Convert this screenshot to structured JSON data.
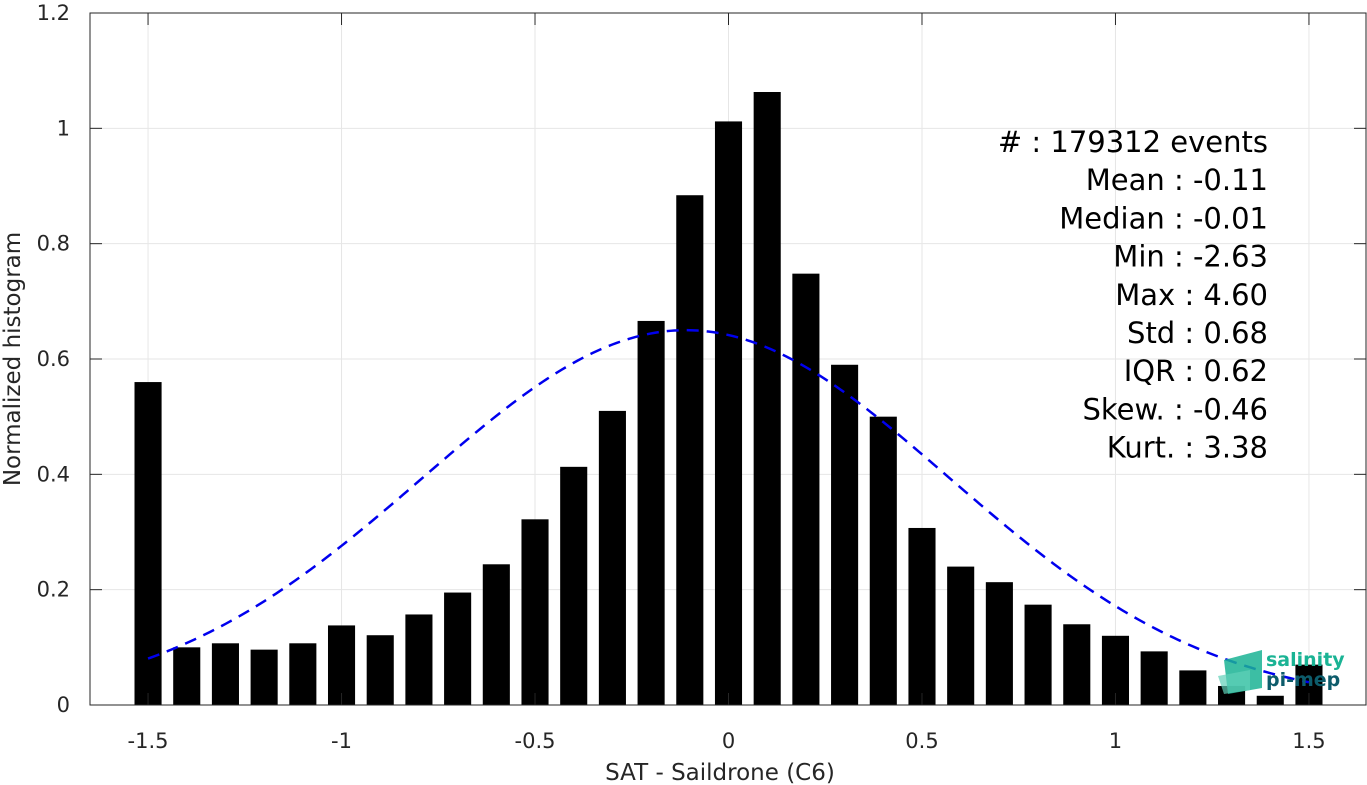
{
  "chart_data": {
    "type": "bar",
    "xlabel": "SAT - Saildrone (C6)",
    "ylabel": "Normalized histogram",
    "xlim": [
      -1.65,
      1.65
    ],
    "ylim": [
      0,
      1.2
    ],
    "xticks": [
      -1.5,
      -1,
      -0.5,
      0,
      0.5,
      1,
      1.5
    ],
    "xtick_labels": [
      "-1.5",
      "-1",
      "-0.5",
      "0",
      "0.5",
      "1",
      "1.5"
    ],
    "yticks": [
      0,
      0.2,
      0.4,
      0.6,
      0.8,
      1,
      1.2
    ],
    "ytick_labels": [
      "0",
      "0.2",
      "0.4",
      "0.6",
      "0.8",
      "1",
      "1.2"
    ],
    "grid": true,
    "bar_color": "#000000",
    "x": [
      -1.5,
      -1.4,
      -1.3,
      -1.2,
      -1.1,
      -1.0,
      -0.9,
      -0.8,
      -0.7,
      -0.6,
      -0.5,
      -0.4,
      -0.3,
      -0.2,
      -0.1,
      0.0,
      0.1,
      0.2,
      0.3,
      0.4,
      0.5,
      0.6,
      0.7,
      0.8,
      0.9,
      1.0,
      1.1,
      1.2,
      1.3,
      1.4,
      1.5
    ],
    "values": [
      0.56,
      0.1,
      0.107,
      0.096,
      0.107,
      0.138,
      0.121,
      0.157,
      0.195,
      0.244,
      0.322,
      0.413,
      0.51,
      0.666,
      0.884,
      1.012,
      1.063,
      0.748,
      0.59,
      0.5,
      0.307,
      0.24,
      0.213,
      0.174,
      0.14,
      0.12,
      0.093,
      0.06,
      0.033,
      0.016,
      0.07
    ],
    "fit_curve": {
      "type": "normal",
      "mean": -0.11,
      "std": 0.68,
      "color": "#0000ee",
      "style": "dashed"
    },
    "stats": [
      "#  : 179312 events",
      "Mean : -0.11",
      "Median : -0.01",
      "Min : -2.63",
      "Max : 4.60",
      "Std : 0.68",
      "IQR : 0.62",
      "Skew. : -0.46",
      "Kurt. : 3.38"
    ]
  },
  "logo": {
    "line1": "salinity",
    "line2": "pi-mep",
    "color1": "#1ab394",
    "color2": "#0d5c6b"
  }
}
